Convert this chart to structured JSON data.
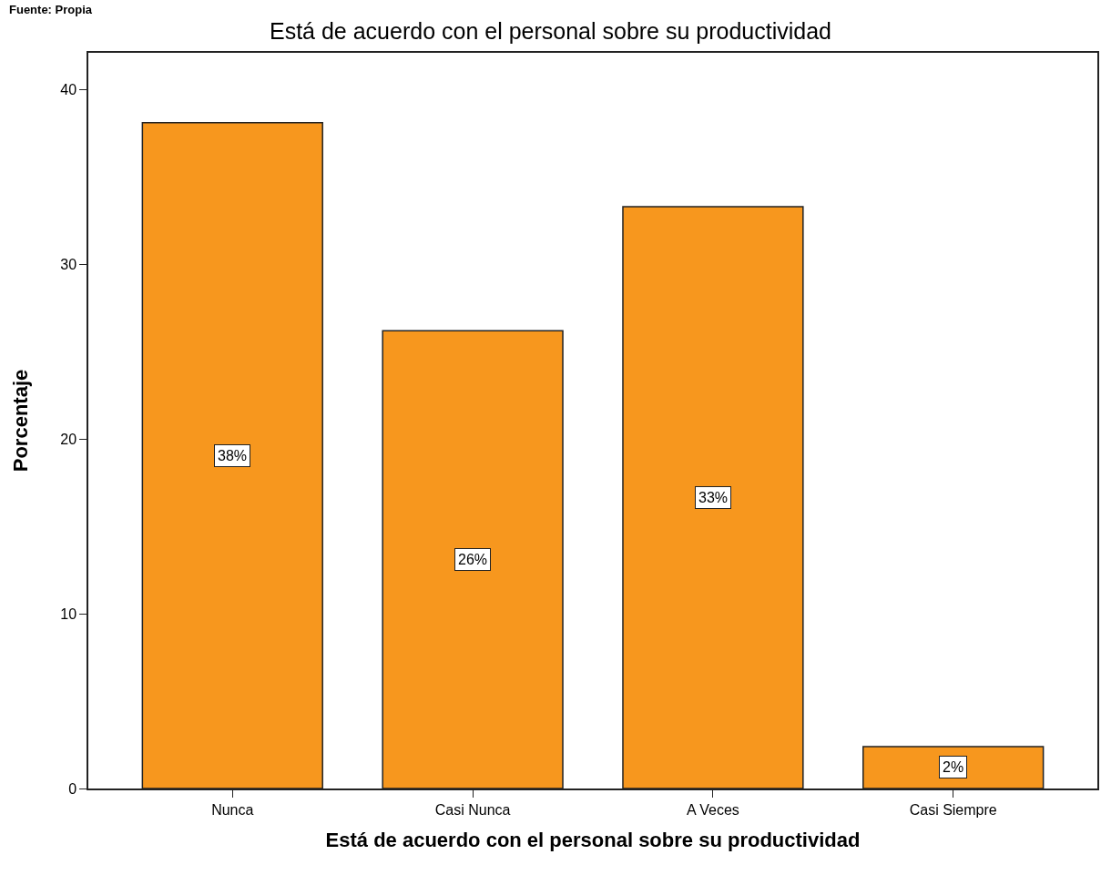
{
  "chart_data": {
    "type": "bar",
    "title": "Está de acuerdo con el personal sobre su productividad",
    "xlabel": "Está de acuerdo con el personal sobre su productividad",
    "ylabel": "Porcentaje",
    "annotations": [
      "Fuente: Propia"
    ],
    "categories": [
      "Nunca",
      "Casi Nunca",
      "A Veces",
      "Casi Siempre"
    ],
    "values": [
      38.1,
      26.2,
      33.3,
      2.4
    ],
    "value_labels": [
      "38%",
      "26%",
      "33%",
      "2%"
    ],
    "color": "#f7971e",
    "ylim": [
      0,
      42.1
    ],
    "yticks": [
      0,
      10,
      20,
      30,
      40
    ]
  }
}
